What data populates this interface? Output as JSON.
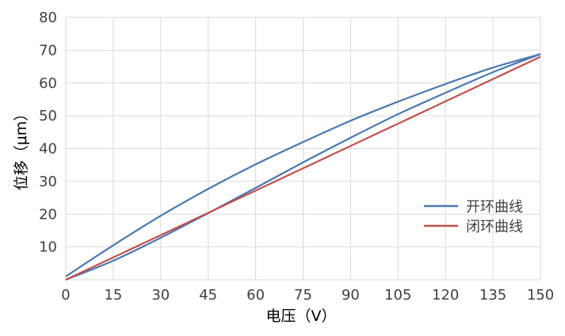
{
  "chart_data": {
    "type": "line",
    "xlabel": "电压（V）",
    "ylabel": "位移（μm）",
    "xlim": [
      0,
      150
    ],
    "ylim": [
      0,
      80
    ],
    "x_ticks": [
      0,
      15,
      30,
      45,
      60,
      75,
      90,
      105,
      120,
      135,
      150
    ],
    "y_ticks": [
      10,
      20,
      30,
      40,
      50,
      60,
      70,
      80
    ],
    "grid": true,
    "legend_position": "right",
    "series": [
      {
        "name": "开环曲线",
        "color": "#4a78b0",
        "branch": "ascending",
        "x": [
          0,
          15,
          30,
          45,
          60,
          75,
          90,
          105,
          120,
          135,
          150
        ],
        "y": [
          0,
          5.8,
          12.8,
          20.3,
          28.0,
          35.8,
          43.3,
          50.5,
          57.0,
          63.3,
          68.8
        ]
      },
      {
        "name": "开环曲线",
        "color": "#4a78b0",
        "branch": "descending",
        "x": [
          0,
          15,
          30,
          45,
          60,
          75,
          90,
          105,
          120,
          135,
          150
        ],
        "y": [
          1.0,
          10.5,
          19.5,
          27.7,
          35.2,
          42.0,
          48.5,
          54.3,
          59.7,
          64.7,
          68.8
        ]
      },
      {
        "name": "闭环曲线",
        "color": "#c0504d",
        "x": [
          0,
          15,
          30,
          45,
          60,
          75,
          90,
          105,
          120,
          135,
          150
        ],
        "y": [
          0,
          6.8,
          13.6,
          20.4,
          27.2,
          34.0,
          40.8,
          47.6,
          54.4,
          61.2,
          68.0
        ]
      }
    ],
    "legend": [
      {
        "label": "开环曲线",
        "color": "#4a78b0"
      },
      {
        "label": "闭环曲线",
        "color": "#c0504d"
      }
    ]
  }
}
